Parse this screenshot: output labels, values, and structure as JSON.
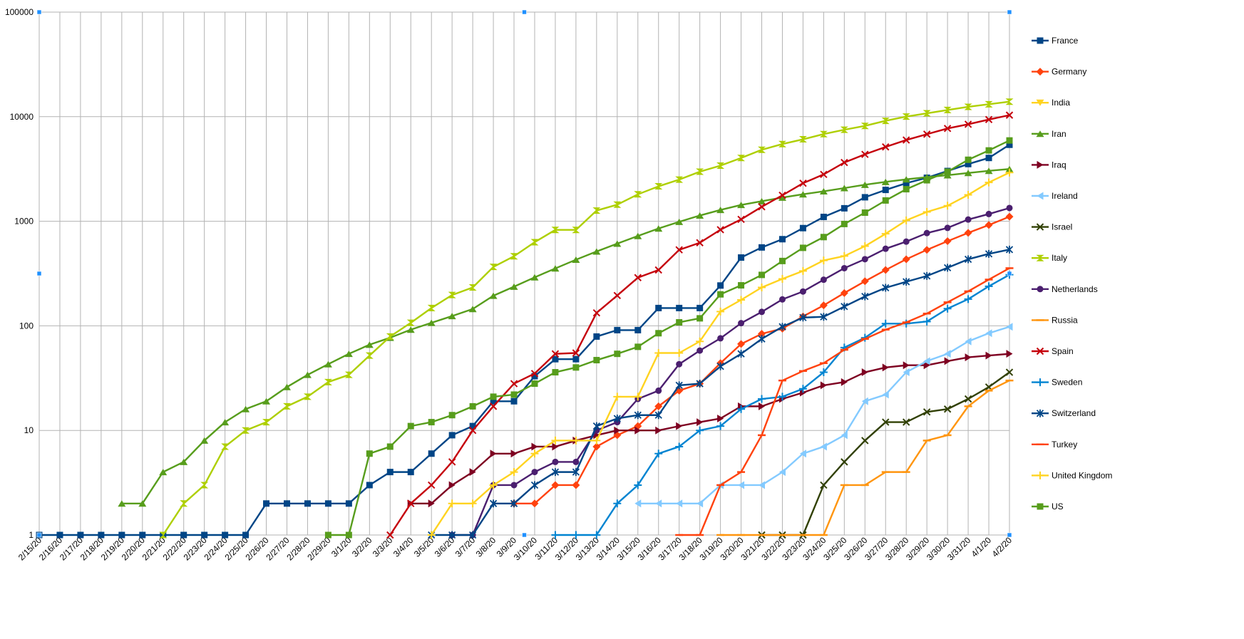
{
  "chart_data": {
    "type": "line",
    "title": "",
    "xlabel": "",
    "ylabel": "",
    "y_scale": "log",
    "ylim": [
      1,
      100000
    ],
    "y_ticks": [
      "1",
      "10",
      "100",
      "1000",
      "10000",
      "100000"
    ],
    "grid": true,
    "legend_position": "right",
    "x": [
      "2/15/20",
      "2/16/20",
      "2/17/20",
      "2/18/20",
      "2/19/20",
      "2/20/20",
      "2/21/20",
      "2/22/20",
      "2/23/20",
      "2/24/20",
      "2/25/20",
      "2/26/20",
      "2/27/20",
      "2/28/20",
      "2/29/20",
      "3/1/20",
      "3/2/20",
      "3/3/20",
      "3/4/20",
      "3/5/20",
      "3/6/20",
      "3/7/20",
      "3/8/20",
      "3/9/20",
      "3/10/20",
      "3/11/20",
      "3/12/20",
      "3/13/20",
      "3/14/20",
      "3/15/20",
      "3/16/20",
      "3/17/20",
      "3/18/20",
      "3/19/20",
      "3/20/20",
      "3/21/20",
      "3/22/20",
      "3/23/20",
      "3/24/20",
      "3/25/20",
      "3/26/20",
      "3/27/20",
      "3/28/20",
      "3/29/20",
      "3/30/20",
      "3/31/20",
      "4/1/20",
      "4/2/20"
    ],
    "series": [
      {
        "name": "France",
        "color": "#004586",
        "marker": "square",
        "values": [
          1,
          1,
          1,
          1,
          1,
          1,
          1,
          1,
          1,
          1,
          1,
          2,
          2,
          2,
          2,
          2,
          3,
          4,
          4,
          6,
          9,
          11,
          19,
          19,
          33,
          48,
          48,
          79,
          91,
          91,
          148,
          148,
          148,
          243,
          450,
          562,
          674,
          860,
          1100,
          1331,
          1696,
          1995,
          2314,
          2606,
          3024,
          3523,
          4032,
          5387
        ]
      },
      {
        "name": "Germany",
        "color": "#ff420e",
        "marker": "diamond",
        "values": [
          null,
          null,
          null,
          null,
          null,
          null,
          null,
          null,
          null,
          null,
          null,
          null,
          null,
          null,
          null,
          null,
          null,
          null,
          null,
          null,
          null,
          null,
          null,
          2,
          2,
          3,
          3,
          7,
          9,
          11,
          17,
          24,
          28,
          44,
          67,
          84,
          94,
          123,
          157,
          206,
          267,
          342,
          433,
          533,
          645,
          775,
          920,
          1107
        ]
      },
      {
        "name": "India",
        "color": "#ffd320",
        "marker": "triangle-down",
        "values": [
          null,
          null,
          null,
          null,
          null,
          null,
          null,
          null,
          null,
          null,
          null,
          null,
          null,
          null,
          null,
          null,
          null,
          null,
          null,
          null,
          null,
          null,
          null,
          null,
          null,
          null,
          null,
          null,
          null,
          null,
          null,
          null,
          null,
          null,
          null,
          null,
          null,
          null,
          null,
          null,
          null,
          null,
          null,
          null,
          null,
          null,
          null,
          null
        ]
      },
      {
        "name": "Iran",
        "color": "#579d1c",
        "marker": "triangle-up",
        "values": [
          null,
          null,
          null,
          null,
          2,
          2,
          4,
          5,
          8,
          12,
          16,
          19,
          26,
          34,
          43,
          54,
          66,
          77,
          92,
          107,
          124,
          145,
          194,
          237,
          291,
          354,
          429,
          514,
          611,
          724,
          853,
          988,
          1135,
          1284,
          1433,
          1556,
          1685,
          1812,
          1934,
          2077,
          2234,
          2378,
          2517,
          2640,
          2757,
          2898,
          3036,
          3160
        ]
      },
      {
        "name": "Iraq",
        "color": "#7e0021",
        "marker": "triangle-right",
        "values": [
          null,
          null,
          null,
          null,
          null,
          null,
          null,
          null,
          null,
          null,
          null,
          null,
          null,
          null,
          null,
          null,
          null,
          null,
          2,
          2,
          3,
          4,
          6,
          6,
          7,
          7,
          8,
          9,
          10,
          10,
          10,
          11,
          12,
          13,
          17,
          17,
          20,
          23,
          27,
          29,
          36,
          40,
          42,
          42,
          46,
          50,
          52,
          54
        ]
      },
      {
        "name": "Ireland",
        "color": "#83caff",
        "marker": "triangle-left",
        "values": [
          null,
          null,
          null,
          null,
          null,
          null,
          null,
          null,
          null,
          null,
          null,
          null,
          null,
          null,
          null,
          null,
          null,
          null,
          null,
          null,
          null,
          null,
          null,
          null,
          null,
          null,
          null,
          null,
          null,
          2,
          2,
          2,
          2,
          3,
          3,
          3,
          4,
          6,
          7,
          9,
          19,
          22,
          36,
          46,
          54,
          71,
          85,
          98
        ]
      },
      {
        "name": "Israel",
        "color": "#314004",
        "marker": "x",
        "values": [
          null,
          null,
          null,
          null,
          null,
          null,
          null,
          null,
          null,
          null,
          null,
          null,
          null,
          null,
          null,
          null,
          null,
          null,
          null,
          null,
          null,
          null,
          null,
          null,
          null,
          null,
          null,
          null,
          null,
          null,
          null,
          null,
          null,
          null,
          null,
          1,
          1,
          1,
          3,
          5,
          8,
          12,
          12,
          15,
          16,
          20,
          26,
          36
        ]
      },
      {
        "name": "Italy",
        "color": "#aecf00",
        "marker": "hourglass",
        "values": [
          null,
          null,
          null,
          null,
          null,
          null,
          1,
          2,
          3,
          7,
          10,
          12,
          17,
          21,
          29,
          34,
          52,
          79,
          107,
          148,
          197,
          233,
          366,
          463,
          631,
          827,
          827,
          1266,
          1441,
          1809,
          2158,
          2503,
          2978,
          3405,
          4032,
          4825,
          5476,
          6077,
          6820,
          7503,
          8165,
          9134,
          10023,
          10779,
          11591,
          12428,
          13155,
          13915
        ]
      },
      {
        "name": "Netherlands",
        "color": "#4b1f6f",
        "marker": "circle",
        "values": [
          null,
          null,
          null,
          null,
          null,
          null,
          null,
          null,
          null,
          null,
          null,
          null,
          null,
          null,
          null,
          null,
          null,
          null,
          null,
          null,
          1,
          1,
          3,
          3,
          4,
          5,
          5,
          10,
          12,
          20,
          24,
          43,
          58,
          76,
          106,
          136,
          179,
          213,
          276,
          356,
          434,
          546,
          639,
          771,
          864,
          1039,
          1173,
          1339
        ]
      },
      {
        "name": "Russia",
        "color": "#ff950e",
        "marker": "dash",
        "values": [
          null,
          null,
          null,
          null,
          null,
          null,
          null,
          null,
          null,
          null,
          null,
          null,
          null,
          null,
          null,
          null,
          null,
          null,
          null,
          null,
          null,
          null,
          null,
          null,
          null,
          null,
          null,
          null,
          null,
          null,
          null,
          null,
          null,
          1,
          1,
          1,
          1,
          1,
          1,
          3,
          3,
          4,
          4,
          8,
          9,
          17,
          24,
          30
        ]
      },
      {
        "name": "Spain",
        "color": "#c5000b",
        "marker": "x",
        "values": [
          null,
          null,
          null,
          null,
          null,
          null,
          null,
          null,
          null,
          null,
          null,
          null,
          null,
          null,
          null,
          null,
          null,
          1,
          2,
          3,
          5,
          10,
          17,
          28,
          35,
          54,
          55,
          133,
          195,
          289,
          342,
          533,
          623,
          830,
          1043,
          1375,
          1772,
          2311,
          2808,
          3647,
          4365,
          5138,
          5982,
          6803,
          7716,
          8464,
          9387,
          10348
        ]
      },
      {
        "name": "Sweden",
        "color": "#0084d1",
        "marker": "plus",
        "values": [
          null,
          null,
          null,
          null,
          null,
          null,
          null,
          null,
          null,
          null,
          null,
          null,
          null,
          null,
          null,
          null,
          null,
          null,
          null,
          null,
          null,
          null,
          null,
          null,
          null,
          1,
          1,
          1,
          2,
          3,
          6,
          7,
          10,
          11,
          16,
          20,
          21,
          25,
          36,
          62,
          77,
          105,
          105,
          110,
          146,
          180,
          239,
          308
        ]
      },
      {
        "name": "Switzerland",
        "color": "#004586",
        "marker": "asterisk",
        "values": [
          null,
          null,
          null,
          null,
          null,
          null,
          null,
          null,
          null,
          null,
          null,
          null,
          null,
          null,
          null,
          null,
          null,
          null,
          null,
          1,
          1,
          1,
          2,
          2,
          3,
          4,
          4,
          11,
          13,
          14,
          14,
          27,
          28,
          41,
          54,
          75,
          98,
          120,
          122,
          153,
          191,
          231,
          264,
          300,
          359,
          433,
          488,
          536
        ]
      },
      {
        "name": "Turkey",
        "color": "#ff420e",
        "marker": "dash",
        "values": [
          null,
          null,
          null,
          null,
          null,
          null,
          null,
          null,
          null,
          null,
          null,
          null,
          null,
          null,
          null,
          null,
          null,
          null,
          null,
          null,
          null,
          null,
          null,
          null,
          null,
          null,
          null,
          null,
          null,
          null,
          null,
          1,
          1,
          3,
          4,
          9,
          30,
          37,
          44,
          59,
          75,
          92,
          108,
          131,
          168,
          214,
          277,
          356
        ]
      },
      {
        "name": "United Kingdom",
        "color": "#ffd320",
        "marker": "plus",
        "values": [
          null,
          null,
          null,
          null,
          null,
          null,
          null,
          null,
          null,
          null,
          null,
          null,
          null,
          null,
          null,
          null,
          null,
          null,
          null,
          1,
          2,
          2,
          3,
          4,
          6,
          8,
          8,
          8,
          21,
          21,
          55,
          55,
          71,
          137,
          177,
          233,
          281,
          335,
          422,
          465,
          578,
          759,
          1019,
          1228,
          1408,
          1789,
          2352,
          2921
        ]
      },
      {
        "name": "US",
        "color": "#579d1c",
        "marker": "square",
        "values": [
          null,
          null,
          null,
          null,
          null,
          null,
          null,
          null,
          null,
          null,
          null,
          null,
          null,
          null,
          1,
          1,
          6,
          7,
          11,
          12,
          14,
          17,
          21,
          22,
          28,
          36,
          40,
          47,
          54,
          63,
          85,
          108,
          118,
          200,
          244,
          307,
          417,
          557,
          706,
          942,
          1209,
          1581,
          2026,
          2467,
          2978,
          3873,
          4757,
          5926
        ]
      }
    ]
  }
}
